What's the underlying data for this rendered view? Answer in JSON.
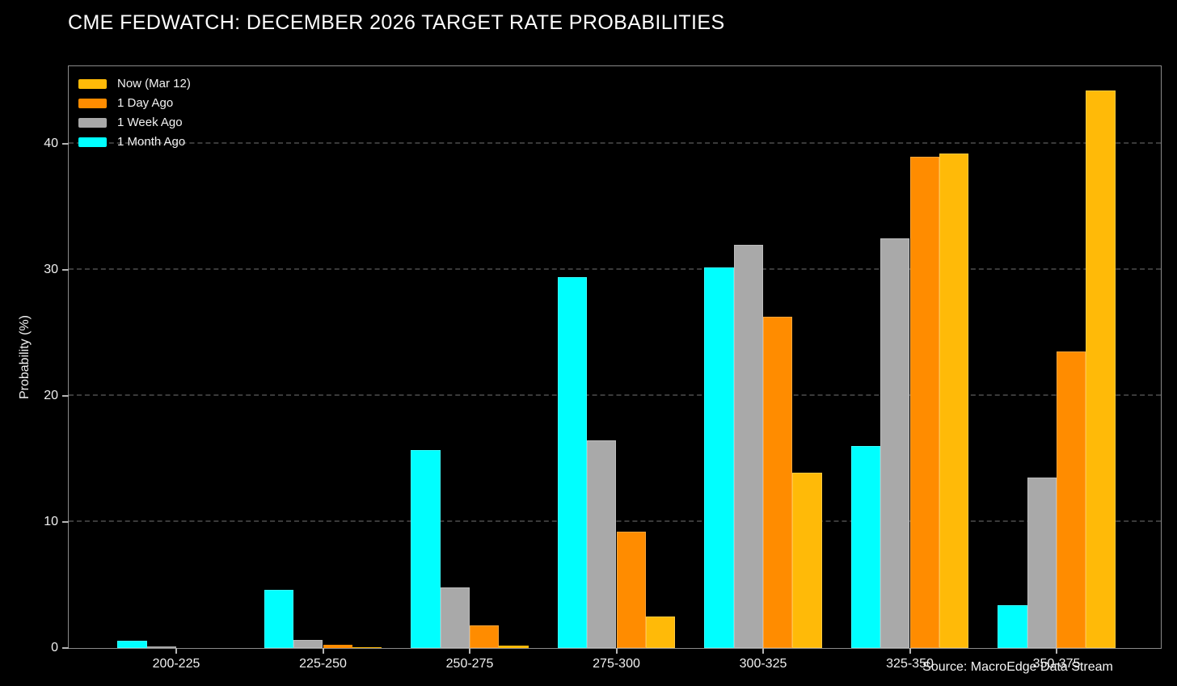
{
  "title": "CME FEDWATCH: DECEMBER 2026 TARGET RATE PROBABILITIES",
  "source_note": "Source: MacroEdge Data Stream",
  "colors": {
    "background": "#000000",
    "grid": "#3a3a3a",
    "spine": "#8a8a8a",
    "text": "#f0f0f0",
    "now": "#FFBA08",
    "one_day": "#FF8C00",
    "one_week": "#A9A9A9",
    "one_month": "#00FFFF"
  },
  "chart_data": {
    "type": "bar",
    "title": "CME FEDWATCH: DECEMBER 2026 TARGET RATE PROBABILITIES",
    "xlabel": "",
    "ylabel": "Probability (%)",
    "categories": [
      "200-225",
      "225-250",
      "250-275",
      "275-300",
      "300-325",
      "325-350",
      "350-375"
    ],
    "series": [
      {
        "name": "Now (Mar 12)",
        "color": "#FFBA08",
        "values": [
          0,
          0.05,
          0.2,
          2.5,
          13.9,
          39.2,
          44.2
        ]
      },
      {
        "name": "1 Day Ago",
        "color": "#FF8C00",
        "values": [
          0,
          0.25,
          1.8,
          9.2,
          26.3,
          39.0,
          23.5
        ]
      },
      {
        "name": "1 Week Ago",
        "color": "#A9A9A9",
        "values": [
          0.1,
          0.65,
          4.8,
          16.5,
          32.0,
          32.5,
          13.5
        ]
      },
      {
        "name": "1 Month Ago",
        "color": "#00FFFF",
        "values": [
          0.6,
          4.6,
          15.7,
          29.4,
          30.2,
          16.0,
          3.4
        ]
      }
    ],
    "bar_order_left_to_right": [
      "1 Month Ago",
      "1 Week Ago",
      "1 Day Ago",
      "Now (Mar 12)"
    ],
    "yticks": [
      0,
      10,
      20,
      30,
      40
    ],
    "ylim": [
      0,
      46.3
    ],
    "grid": true,
    "legend_position": "upper-left"
  }
}
